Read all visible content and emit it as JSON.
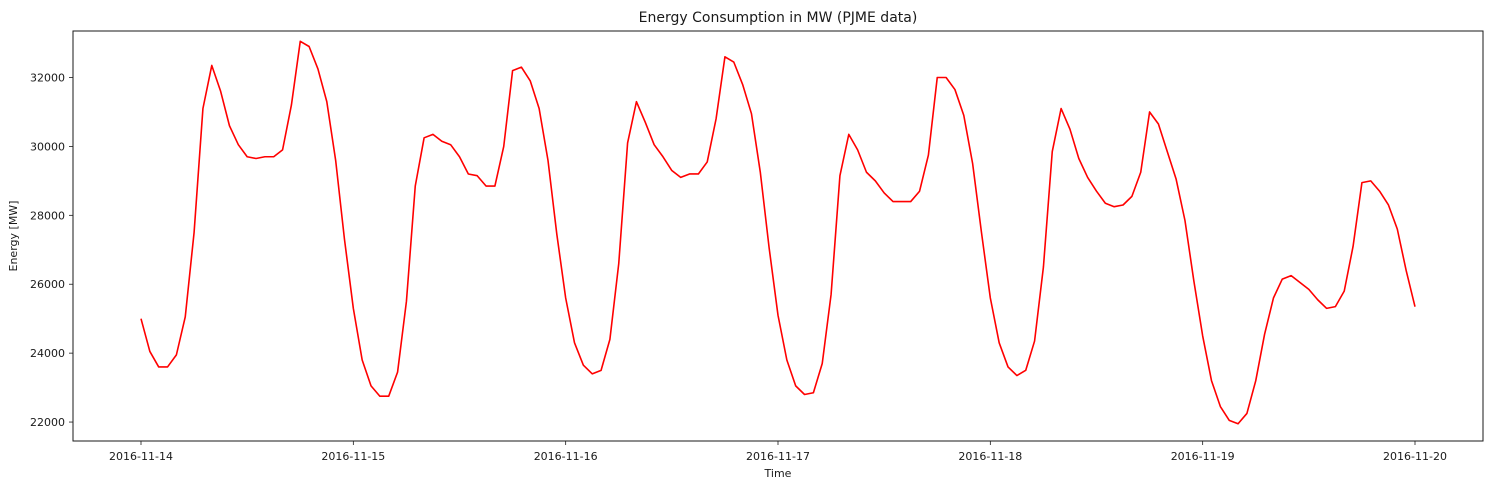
{
  "chart_data": {
    "type": "line",
    "title": "Energy Consumption in MW (PJME data)",
    "xlabel": "Time",
    "ylabel": "Energy [MW]",
    "x_range": [
      "2016-11-14 00:00",
      "2016-11-20 00:00"
    ],
    "ylim": [
      21450,
      33350
    ],
    "x_ticks": [
      "2016-11-14",
      "2016-11-15",
      "2016-11-16",
      "2016-11-17",
      "2016-11-18",
      "2016-11-19",
      "2016-11-20"
    ],
    "y_ticks": [
      22000,
      24000,
      26000,
      28000,
      30000,
      32000
    ],
    "y_tick_labels": [
      "22000",
      "24000",
      "26000",
      "28000",
      "30000",
      "32000"
    ],
    "grid": false,
    "series": [
      {
        "color": "#ff0000",
        "x_start": "2016-11-14 00:00",
        "x_step": "1 hour",
        "values": [
          25000,
          24050,
          23600,
          23600,
          23950,
          25050,
          27500,
          31100,
          32350,
          31600,
          30600,
          30050,
          29700,
          29650,
          29700,
          29700,
          29900,
          31200,
          33050,
          32900,
          32250,
          31300,
          29600,
          27300,
          25300,
          23800,
          23050,
          22750,
          22750,
          23450,
          25500,
          28850,
          30250,
          30350,
          30150,
          30050,
          29700,
          29200,
          29150,
          28850,
          28850,
          30000,
          32200,
          32300,
          31900,
          31100,
          29600,
          27450,
          25600,
          24300,
          23650,
          23400,
          23500,
          24400,
          26600,
          30100,
          31300,
          30700,
          30050,
          29700,
          29300,
          29100,
          29200,
          29200,
          29550,
          30800,
          32600,
          32450,
          31800,
          30950,
          29250,
          27050,
          25100,
          23800,
          23050,
          22800,
          22850,
          23700,
          25700,
          29150,
          30350,
          29900,
          29250,
          29000,
          28650,
          28400,
          28400,
          28400,
          28700,
          29750,
          32000,
          32000,
          31650,
          30900,
          29500,
          27500,
          25600,
          24300,
          23600,
          23350,
          23500,
          24350,
          26500,
          29850,
          31100,
          30500,
          29650,
          29100,
          28700,
          28350,
          28250,
          28300,
          28550,
          29250,
          31000,
          30650,
          29850,
          29050,
          27850,
          26100,
          24500,
          23200,
          22450,
          22050,
          21950,
          22250,
          23200,
          24550,
          25600,
          26150,
          26250,
          26050,
          25850,
          25550,
          25300,
          25350,
          25800,
          27100,
          28950,
          29000,
          28700,
          28300,
          27600,
          26400,
          25350
        ]
      }
    ]
  }
}
